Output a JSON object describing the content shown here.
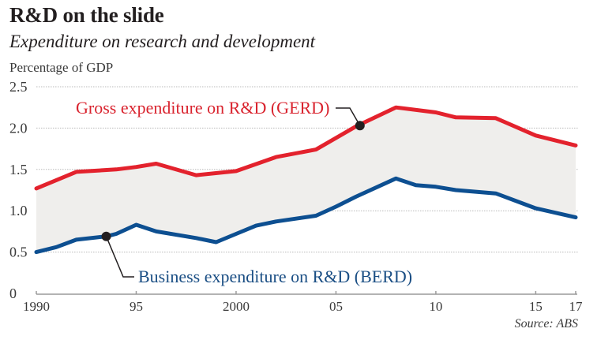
{
  "header": {
    "title": "R&D on the slide",
    "subtitle": "Expenditure on research and development",
    "unit_label": "Percentage of GDP",
    "source": "Source: ABS"
  },
  "colors": {
    "gerd": "#e3222d",
    "berd": "#0d4f91",
    "fill": "#efeeec",
    "grid": "#b9b9b9",
    "axis": "#9a9a9a",
    "callout": "#231f20"
  },
  "chart_data": {
    "type": "line",
    "title": "R&D on the slide",
    "subtitle": "Expenditure on research and development",
    "ylabel": "Percentage of GDP",
    "xlabel": "",
    "xlim": [
      1990,
      2017
    ],
    "ylim": [
      0,
      2.5
    ],
    "grid": true,
    "y_ticks": [
      0,
      0.5,
      1.0,
      1.5,
      2.0,
      2.5
    ],
    "y_tick_labels": [
      "0",
      "0.5",
      "1.0",
      "1.5",
      "2.0",
      "2.5"
    ],
    "x_ticks": [
      1990,
      1995,
      2000,
      2005,
      2010,
      2015,
      2017
    ],
    "x_tick_labels": [
      "1990",
      "95",
      "2000",
      "05",
      "10",
      "15",
      "17"
    ],
    "shaded_between_series": true,
    "series": [
      {
        "name": "Gross expenditure on R&D (GERD)",
        "key": "gerd",
        "x": [
          1990,
          1992,
          1994,
          1995,
          1996,
          1998,
          2000,
          2002,
          2004,
          2006,
          2008,
          2010,
          2011,
          2013,
          2015,
          2017
        ],
        "values": [
          1.27,
          1.47,
          1.5,
          1.53,
          1.57,
          1.43,
          1.48,
          1.65,
          1.74,
          2.02,
          2.25,
          2.19,
          2.13,
          2.12,
          1.91,
          1.79
        ]
      },
      {
        "name": "Business expenditure on R&D (BERD)",
        "key": "berd",
        "x": [
          1990,
          1991,
          1992,
          1993.5,
          1994,
          1995,
          1996,
          1998,
          1999,
          2000,
          2001,
          2002,
          2004,
          2005,
          2006,
          2008,
          2009,
          2010,
          2011,
          2013,
          2015,
          2017
        ],
        "values": [
          0.5,
          0.56,
          0.65,
          0.69,
          0.72,
          0.83,
          0.75,
          0.67,
          0.62,
          0.72,
          0.82,
          0.87,
          0.94,
          1.05,
          1.17,
          1.39,
          1.31,
          1.29,
          1.25,
          1.21,
          1.03,
          0.92
        ]
      }
    ],
    "annotations": [
      {
        "text": "Gross expenditure on R&D (GERD)",
        "series": "gerd",
        "x": 2006.2,
        "y": 2.03
      },
      {
        "text": "Business expenditure on R&D (BERD)",
        "series": "berd",
        "x": 1993.5,
        "y": 0.69
      }
    ],
    "source": "Source: ABS"
  }
}
